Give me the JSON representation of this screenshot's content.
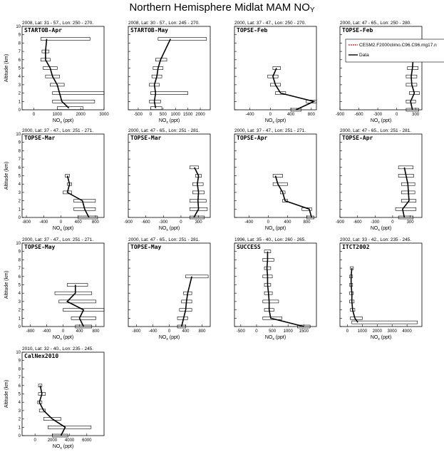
{
  "page": {
    "title": "Northern Hemisphere Midlat MAM NO",
    "title_sub": "Y"
  },
  "legend": {
    "model_label": "CESM2.F2000climo.C96.C96.mg17.n",
    "data_label": "Data",
    "model_color": "#ff0000",
    "data_color": "#000000"
  },
  "axis_labels": {
    "y": "Altitude (km)",
    "x": "NO",
    "x_sub": "x",
    "x_unit": " (ppt)"
  },
  "chart_data": [
    {
      "type": "line",
      "header": "2008, Lat: 31 - 57., Lon: 250 - 270.",
      "name": "STARTOB-Apr",
      "xlim": [
        -500,
        3000
      ],
      "xticks": [
        0,
        1000,
        2000,
        3000
      ],
      "xticklabels": [
        "0",
        "1000",
        "2000",
        "3000"
      ],
      "ylim": [
        0,
        10
      ],
      "yticks": [
        0,
        1,
        2,
        3,
        4,
        5,
        6,
        7,
        8,
        9,
        10
      ],
      "x": [
        1500,
        1200,
        1100,
        1000,
        800,
        700,
        500,
        500,
        550
      ],
      "y": [
        0.2,
        1,
        2,
        3,
        4,
        5,
        6,
        7,
        8.5
      ],
      "err": [
        [
          1000,
          2100
        ],
        [
          800,
          2600
        ],
        [
          800,
          3000
        ],
        [
          700,
          1300
        ],
        [
          500,
          1100
        ],
        [
          400,
          1000
        ],
        [
          300,
          700
        ],
        [
          350,
          650
        ],
        [
          300,
          2400
        ]
      ]
    },
    {
      "type": "line",
      "header": "2008, Lat: 30 - 57., Lon: 245 - 270.",
      "name": "STARTOB-May",
      "xlim": [
        -900,
        2400
      ],
      "xticks": [
        -500,
        0,
        500,
        1000,
        1500,
        2000
      ],
      "xticklabels": [
        "-500",
        "0",
        "500",
        "1000",
        "1500",
        "2000"
      ],
      "ylim": [
        0,
        10
      ],
      "yticks": [
        0,
        1,
        2,
        3,
        4,
        5,
        6,
        7,
        8,
        9,
        10
      ],
      "x": [
        200,
        150,
        200,
        150,
        250,
        300,
        400,
        800
      ],
      "y": [
        0.2,
        1,
        2,
        3,
        4,
        5,
        6,
        8.5
      ],
      "err": [
        [
          0,
          450
        ],
        [
          -50,
          400
        ],
        [
          0,
          1500
        ],
        [
          -50,
          350
        ],
        [
          50,
          450
        ],
        [
          100,
          500
        ],
        [
          200,
          650
        ],
        [
          300,
          2250
        ]
      ]
    },
    {
      "type": "line",
      "header": "2000, Lat: 37 - 47., Lon: 250 - 270.",
      "name": "TOPSE-Feb",
      "xlim": [
        -700,
        900
      ],
      "xticks": [
        -400,
        0,
        400,
        800
      ],
      "xticklabels": [
        "-400",
        "0",
        "400",
        "800"
      ],
      "ylim": [
        0,
        10
      ],
      "yticks": [
        0,
        1,
        2,
        3,
        4,
        5,
        6,
        7,
        8,
        9,
        10
      ],
      "x": [
        500,
        850,
        200,
        100,
        50,
        120
      ],
      "y": [
        0,
        1,
        2,
        3,
        4,
        5
      ],
      "err": [
        [
          400,
          600
        ],
        [
          700,
          900
        ],
        [
          100,
          300
        ],
        [
          0,
          200
        ],
        [
          -50,
          150
        ],
        [
          50,
          200
        ]
      ]
    },
    {
      "type": "line",
      "header": "2000, Lat: 47 - 65., Lon: 250 - 280.",
      "name": "TOPSE-Feb",
      "xlim": [
        -900,
        400
      ],
      "xticks": [
        -900,
        -600,
        -300,
        0,
        300
      ],
      "xticklabels": [
        "-900",
        "-600",
        "-300",
        "0",
        "300"
      ],
      "ylim": [
        0,
        10
      ],
      "yticks": [
        0,
        1,
        2,
        3,
        4,
        5,
        6,
        7,
        8,
        9,
        10
      ],
      "x": [
        250,
        220,
        280,
        240,
        230,
        250,
        260
      ],
      "y": [
        0,
        1,
        2,
        3,
        4,
        5,
        6
      ],
      "err": [
        [
          150,
          350
        ],
        [
          150,
          300
        ],
        [
          200,
          360
        ],
        [
          150,
          320
        ],
        [
          150,
          320
        ],
        [
          170,
          340
        ],
        [
          180,
          340
        ]
      ]
    },
    {
      "type": "line",
      "header": "2000, Lat: 37 - 47., Lon: 251 - 271.",
      "name": "TOPSE-Mar",
      "xlim": [
        -900,
        1000
      ],
      "xticks": [
        -800,
        -400,
        0,
        400,
        800
      ],
      "xticklabels": [
        "-800",
        "-400",
        "0",
        "400",
        "800"
      ],
      "ylim": [
        0,
        10
      ],
      "yticks": [
        0,
        1,
        2,
        3,
        4,
        5,
        6,
        7,
        8,
        9,
        10
      ],
      "x": [
        650,
        550,
        500,
        150,
        200,
        150
      ],
      "y": [
        0,
        1,
        2,
        3,
        4,
        5
      ],
      "err": [
        [
          400,
          850
        ],
        [
          300,
          800
        ],
        [
          300,
          800
        ],
        [
          50,
          250
        ],
        [
          150,
          250
        ],
        [
          100,
          200
        ]
      ]
    },
    {
      "type": "line",
      "header": "2000, Lat: 47 - 65., Lon: 251 - 281.",
      "name": "TOPSE-Mar",
      "xlim": [
        -900,
        500
      ],
      "xticks": [
        -900,
        -600,
        -300,
        0,
        300
      ],
      "xticklabels": [
        "-900",
        "-600",
        "-300",
        "0",
        "300"
      ],
      "ylim": [
        0,
        10
      ],
      "yticks": [
        0,
        1,
        2,
        3,
        4,
        5,
        6,
        7,
        8,
        9,
        10
      ],
      "x": [
        220,
        300,
        290,
        300,
        280,
        300,
        230
      ],
      "y": [
        0,
        1,
        2,
        3,
        4,
        5,
        6
      ],
      "err": [
        [
          150,
          400
        ],
        [
          150,
          450
        ],
        [
          150,
          430
        ],
        [
          200,
          400
        ],
        [
          200,
          380
        ],
        [
          250,
          350
        ],
        [
          150,
          300
        ]
      ]
    },
    {
      "type": "line",
      "header": "2000, Lat: 37 - 47., Lon: 251 - 271.",
      "name": "TOPSE-Apr",
      "xlim": [
        -700,
        1000
      ],
      "xticks": [
        -400,
        0,
        400,
        800
      ],
      "xticklabels": [
        "-400",
        "0",
        "400",
        "800"
      ],
      "ylim": [
        0,
        10
      ],
      "yticks": [
        0,
        1,
        2,
        3,
        4,
        5,
        6,
        7,
        8,
        9,
        10
      ],
      "x": [
        900,
        850,
        350,
        300,
        200,
        150
      ],
      "y": [
        0,
        1,
        2,
        3,
        4,
        5
      ],
      "err": [
        [
          800,
          950
        ],
        [
          700,
          900
        ],
        [
          300,
          400
        ],
        [
          250,
          350
        ],
        [
          100,
          400
        ],
        [
          100,
          300
        ]
      ]
    },
    {
      "type": "line",
      "header": "2000, Lat: 47 - 65., Lon: 251 - 281.",
      "name": "TOPSE-Apr",
      "xlim": [
        -900,
        500
      ],
      "xticks": [
        -900,
        -600,
        -300,
        0,
        300
      ],
      "xticklabels": [
        "-900",
        "-600",
        "-300",
        "0",
        "300"
      ],
      "ylim": [
        0,
        10
      ],
      "yticks": [
        0,
        1,
        2,
        3,
        4,
        5,
        6,
        7,
        8,
        9,
        10
      ],
      "x": [
        200,
        170,
        280,
        270,
        260,
        230,
        200
      ],
      "y": [
        0,
        1,
        2,
        3,
        4,
        5,
        6
      ],
      "err": [
        [
          100,
          350
        ],
        [
          50,
          400
        ],
        [
          150,
          400
        ],
        [
          150,
          380
        ],
        [
          150,
          380
        ],
        [
          100,
          360
        ],
        [
          100,
          350
        ]
      ]
    },
    {
      "type": "line",
      "header": "2000, Lat: 37 - 47., Lon: 251 - 271.",
      "name": "TOPSE-May",
      "xlim": [
        -1000,
        1000
      ],
      "xticks": [
        -800,
        -400,
        0,
        400,
        800
      ],
      "xticklabels": [
        "-800",
        "-400",
        "0",
        "400",
        "800"
      ],
      "ylim": [
        0,
        10
      ],
      "yticks": [
        0,
        1,
        2,
        3,
        4,
        5,
        6,
        7,
        8,
        9,
        10
      ],
      "x": [
        500,
        400,
        500,
        100,
        300,
        300
      ],
      "y": [
        0,
        1,
        2,
        3,
        4,
        5
      ],
      "err": [
        [
          300,
          700
        ],
        [
          200,
          800
        ],
        [
          0,
          1000
        ],
        [
          -100,
          800
        ],
        [
          -200,
          700
        ],
        [
          100,
          600
        ]
      ]
    },
    {
      "type": "line",
      "header": "2000, Lat: 47 - 65., Lon: 251 - 281.",
      "name": "TOPSE-May",
      "xlim": [
        -1000,
        1000
      ],
      "xticks": [
        -800,
        -400,
        0,
        400,
        800
      ],
      "xticklabels": [
        "-800",
        "-400",
        "0",
        "400",
        "800"
      ],
      "ylim": [
        0,
        10
      ],
      "yticks": [
        0,
        1,
        2,
        3,
        4,
        5,
        6,
        7,
        8,
        9,
        10
      ],
      "x": [
        300,
        350,
        400,
        420,
        450,
        550
      ],
      "y": [
        0,
        1,
        2,
        3,
        4,
        6
      ],
      "err": [
        [
          200,
          400
        ],
        [
          200,
          450
        ],
        [
          250,
          550
        ],
        [
          300,
          550
        ],
        [
          350,
          550
        ],
        [
          400,
          950
        ]
      ]
    },
    {
      "type": "line",
      "header": "1996, Lat: 35 - 40., Lon: 260 - 265.",
      "name": "SUCCESS",
      "xlim": [
        -700,
        1900
      ],
      "xticks": [
        -500,
        0,
        500,
        1000,
        1500
      ],
      "xticklabels": [
        "-500",
        "0",
        "500",
        "1000",
        "1500"
      ],
      "ylim": [
        0,
        10
      ],
      "yticks": [
        0,
        1,
        2,
        3,
        4,
        5,
        6,
        7,
        8,
        9,
        10
      ],
      "x": [
        1500,
        450,
        400,
        400,
        380,
        350,
        350,
        330,
        350,
        350
      ],
      "y": [
        0,
        1,
        2,
        3,
        4,
        5,
        6,
        7,
        8,
        9
      ],
      "err": [
        [
          1300,
          1700
        ],
        [
          200,
          800
        ],
        [
          250,
          550
        ],
        [
          200,
          700
        ],
        [
          250,
          500
        ],
        [
          250,
          450
        ],
        [
          200,
          500
        ],
        [
          250,
          450
        ],
        [
          200,
          550
        ],
        [
          250,
          450
        ]
      ]
    },
    {
      "type": "line",
      "header": "2002, Lat: 33 - 42., Lon: 235 - 245.",
      "name": "ITCT2002",
      "xlim": [
        -500,
        5000
      ],
      "xticks": [
        0,
        1000,
        2000,
        3000,
        4000
      ],
      "xticklabels": [
        "0",
        "1000",
        "2000",
        "3000",
        "4000"
      ],
      "ylim": [
        0,
        10
      ],
      "yticks": [
        0,
        1,
        2,
        3,
        4,
        5,
        6,
        7,
        8,
        9,
        10
      ],
      "x": [
        700,
        500,
        350,
        300,
        300,
        250,
        250,
        300
      ],
      "y": [
        0.5,
        1,
        2,
        3,
        4,
        5,
        6,
        7
      ],
      "err": [
        [
          300,
          4700
        ],
        [
          200,
          1000
        ],
        [
          200,
          500
        ],
        [
          150,
          450
        ],
        [
          150,
          400
        ],
        [
          150,
          350
        ],
        [
          150,
          350
        ],
        [
          200,
          400
        ]
      ]
    },
    {
      "type": "line",
      "header": "2010, Lat: 32 - 40., Lon: 235 - 245.",
      "name": "CalNex2010",
      "xlim": [
        -1500,
        8000
      ],
      "xticks": [
        0,
        2000,
        4000,
        6000
      ],
      "xticklabels": [
        "0",
        "2000",
        "4000",
        "6000"
      ],
      "ylim": [
        0,
        10
      ],
      "yticks": [
        0,
        1,
        2,
        3,
        4,
        5,
        6,
        7,
        8,
        9,
        10
      ],
      "x": [
        3000,
        3500,
        2000,
        1000,
        500,
        800,
        600
      ],
      "y": [
        0,
        1,
        2,
        3,
        4,
        5,
        6
      ],
      "err": [
        [
          2000,
          3800
        ],
        [
          1500,
          6500
        ],
        [
          1000,
          3000
        ],
        [
          500,
          1200
        ],
        [
          300,
          800
        ],
        [
          400,
          1200
        ],
        [
          400,
          800
        ]
      ]
    }
  ]
}
